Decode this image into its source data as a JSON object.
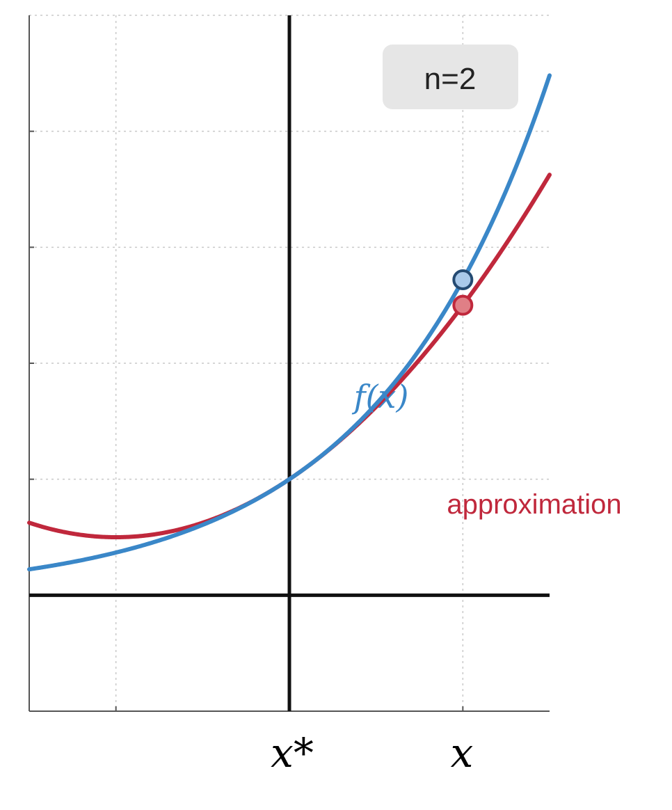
{
  "badge": {
    "n_label": "n=2"
  },
  "labels": {
    "f_label": "f(x)",
    "approx_label": "approximation",
    "xstar_label": "x*",
    "x_label": "x"
  },
  "colors": {
    "function": "#3a87c8",
    "approximation": "#c0283c",
    "axis": "#111111",
    "grid": "#c8c8c8",
    "frame": "#555555",
    "badge_bg": "#e6e6e6"
  },
  "chart_data": {
    "type": "line",
    "title": "",
    "xlabel": "",
    "ylabel": "",
    "xlim": [
      -1.5,
      1.5
    ],
    "ylim": [
      -1,
      5
    ],
    "grid": true,
    "x_star": 0,
    "x_eval": 1,
    "series": [
      {
        "key": "function",
        "name": "f(x)",
        "formula": "exp(x)"
      },
      {
        "key": "approximation",
        "name": "approximation",
        "formula": "1 + x + x^2/2"
      }
    ],
    "markers": [
      {
        "series": "function",
        "x": 1,
        "y": 2.72
      },
      {
        "series": "approximation",
        "x": 1,
        "y": 2.5
      }
    ]
  }
}
